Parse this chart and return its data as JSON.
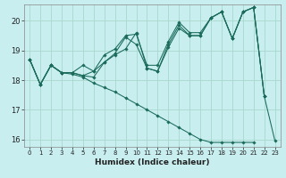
{
  "xlabel": "Humidex (Indice chaleur)",
  "bg_color": "#c8eef0",
  "grid_color": "#aad8cc",
  "line_color": "#1a6b5a",
  "xlim": [
    -0.5,
    23.5
  ],
  "ylim": [
    15.75,
    20.55
  ],
  "yticks": [
    16,
    17,
    18,
    19,
    20
  ],
  "xticks": [
    0,
    1,
    2,
    3,
    4,
    5,
    6,
    7,
    8,
    9,
    10,
    11,
    12,
    13,
    14,
    15,
    16,
    17,
    18,
    19,
    20,
    21,
    22,
    23
  ],
  "series": [
    [
      18.7,
      17.85,
      18.5,
      18.25,
      18.25,
      18.15,
      18.1,
      18.6,
      18.85,
      19.05,
      19.6,
      18.4,
      18.3,
      19.2,
      19.85,
      19.5,
      19.5,
      20.1,
      20.3,
      19.4,
      20.3,
      20.45,
      17.45,
      15.95
    ],
    [
      18.7,
      17.85,
      18.5,
      18.25,
      18.25,
      18.5,
      18.3,
      18.85,
      19.05,
      19.5,
      19.55,
      18.5,
      18.5,
      19.3,
      19.95,
      19.6,
      19.6,
      20.1,
      20.3,
      19.4,
      20.3,
      20.45,
      17.45,
      null
    ],
    [
      18.7,
      17.85,
      18.5,
      18.25,
      18.25,
      18.15,
      18.3,
      18.6,
      18.9,
      19.45,
      19.2,
      18.4,
      18.3,
      19.1,
      19.75,
      19.5,
      19.5,
      20.1,
      20.3,
      19.4,
      20.3,
      20.45,
      17.45,
      null
    ],
    [
      18.7,
      17.85,
      18.5,
      18.25,
      18.2,
      18.1,
      17.9,
      17.75,
      17.6,
      17.4,
      17.2,
      17.0,
      16.8,
      16.6,
      16.4,
      16.2,
      16.0,
      15.9,
      15.9,
      15.9,
      15.9,
      15.9,
      null,
      null
    ]
  ]
}
